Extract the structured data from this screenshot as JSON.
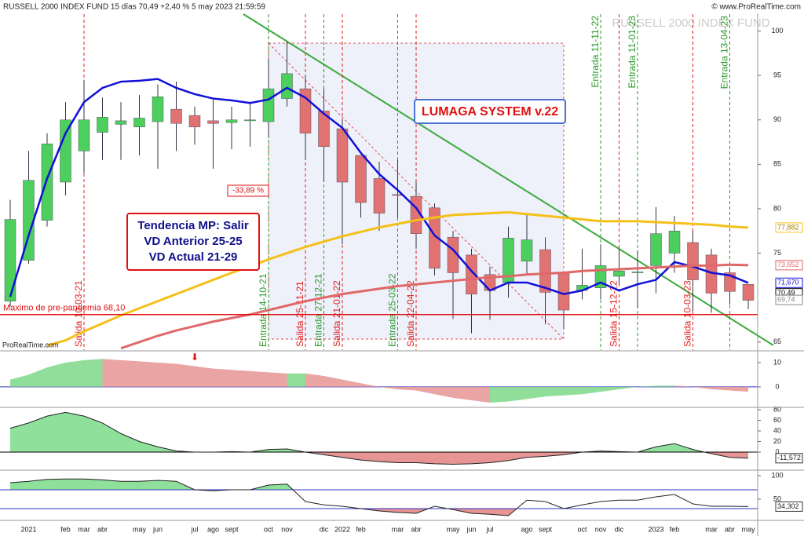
{
  "header": {
    "title": "RUSSELL 2000 INDEX FUND 15 días 70,49 +2,40 % 5 may 2023 21:59:59",
    "source": "© www.ProRealTime.com",
    "watermark": "RUSSELL 2000 INDEX FUND",
    "footer": "ProRealTime.com"
  },
  "annotations": {
    "system": "LUMAGA SYSTEM v.22",
    "trend": [
      "Tendencia MP: Salir",
      "VD Anterior 25-25",
      "VD Actual 21-29"
    ],
    "drawdown": "-33,89 %"
  },
  "chart_data": [
    {
      "type": "candlestick",
      "up_color": "#4ccf5c",
      "down_color": "#e07272",
      "categories": [
        null,
        "2021",
        null,
        "feb",
        "mar",
        "abr",
        null,
        "may",
        "jun",
        null,
        "jul",
        "ago",
        "sept",
        null,
        "oct",
        "nov",
        null,
        "dic",
        "2022",
        "feb",
        null,
        "mar",
        "abr",
        null,
        "may",
        "jun",
        "jul",
        null,
        "ago",
        "sept",
        null,
        "oct",
        "nov",
        "dic",
        null,
        "2023",
        "feb",
        null,
        "mar",
        "abr",
        "may"
      ],
      "open": [
        69.6,
        74.2,
        78.7,
        83,
        86.5,
        88.6,
        89.5,
        89.2,
        89.8,
        91.2,
        90.5,
        89.9,
        89.7,
        89.9,
        89.8,
        92.4,
        93.5,
        91,
        89,
        86,
        83.4,
        81.6,
        81.4,
        80.1,
        76.8,
        74.8,
        72.6,
        71.7,
        74.1,
        75.4,
        72.8,
        70.8,
        71.1,
        72.4,
        72.8,
        73.6,
        75,
        76.2,
        74.8,
        72.8,
        71.5
      ],
      "high": [
        81,
        86.5,
        88.5,
        92,
        94.5,
        92.5,
        92,
        92.8,
        94,
        94.3,
        91.5,
        92.3,
        91.5,
        92,
        97,
        98.8,
        95,
        93.5,
        90,
        86,
        85.3,
        85.5,
        83,
        80.6,
        77.5,
        75.5,
        73.5,
        78,
        79.5,
        76.8,
        72.8,
        75.5,
        76,
        75.5,
        75.3,
        80.2,
        79.2,
        77.5,
        75.5,
        73.3,
        71.5
      ],
      "low": [
        69,
        73.8,
        78,
        81.5,
        84,
        85.5,
        85.5,
        86,
        84.5,
        86.5,
        87.2,
        84.5,
        86.7,
        87,
        88,
        91.5,
        85.5,
        83,
        76,
        79,
        77.5,
        79,
        75.5,
        72.5,
        67.6,
        66,
        67.5,
        70,
        72.5,
        67,
        66.5,
        69.8,
        69.8,
        71.5,
        68.8,
        70.5,
        72.8,
        68.5,
        68.3,
        69.2,
        68.7
      ],
      "close": [
        78.8,
        83.2,
        87.3,
        90,
        90,
        90.3,
        89.9,
        90.2,
        92.6,
        89.6,
        89.2,
        89.6,
        90,
        90,
        93.5,
        95.2,
        88.5,
        87,
        83,
        80.7,
        79.5,
        81.5,
        77.2,
        73.3,
        72.8,
        70.4,
        70.8,
        76.7,
        76.5,
        70.6,
        68.6,
        71.4,
        73.6,
        73,
        72.9,
        77.2,
        77.5,
        72,
        70.5,
        70.7,
        69.7
      ],
      "overlays": [
        {
          "color": "#1010d8",
          "values": [
            70.1,
            77,
            83.4,
            88.5,
            92,
            93.6,
            94.3,
            94.4,
            94.6,
            93.6,
            92.9,
            92.4,
            92.2,
            91.9,
            92.3,
            93.6,
            92.5,
            90.7,
            89.1,
            86.3,
            83.9,
            82.1,
            80.1,
            77,
            75.4,
            73,
            70.8,
            71.7,
            71.7,
            71.1,
            70.4,
            70.8,
            71.7,
            70.8,
            71.5,
            72,
            74,
            73.5,
            72.8,
            72.5,
            71.67
          ]
        },
        {
          "color": "#f5c018",
          "values": [
            null,
            null,
            64.6,
            65.2,
            66.2,
            67.1,
            68,
            68.8,
            69.6,
            70.4,
            71.2,
            72,
            72.8,
            73.5,
            74.3,
            75,
            75.7,
            76.3,
            76.9,
            77.4,
            77.9,
            78.3,
            78.7,
            79,
            79.3,
            79.4,
            79.5,
            79.6,
            79.4,
            79.2,
            79,
            78.8,
            78.6,
            78.6,
            78.6,
            78.5,
            78.4,
            78.3,
            78.2,
            78,
            77.882
          ]
        },
        {
          "color": "#e06868",
          "values": [
            null,
            null,
            null,
            null,
            null,
            null,
            64.3,
            65,
            65.7,
            66.3,
            66.8,
            67.3,
            67.7,
            68.1,
            68.6,
            69.1,
            69.6,
            70,
            70.4,
            70.7,
            71,
            71.3,
            71.5,
            71.7,
            71.9,
            72.1,
            72.3,
            72.4,
            72.6,
            72.7,
            72.8,
            73,
            73.1,
            73.2,
            73.3,
            73.4,
            73.5,
            73.6,
            73.6,
            73.7,
            73.652
          ]
        }
      ],
      "hline": {
        "value": 68.1,
        "label": "Maximo de pre-pandemia 68,10",
        "color": "#e01010"
      },
      "price_labels": [
        {
          "value": 77.882,
          "label": "77,882",
          "color": "#f5c018"
        },
        {
          "value": 73.652,
          "label": "73,652",
          "color": "#e06868"
        },
        {
          "value": 71.67,
          "label": "71,670",
          "color": "#1010d8"
        },
        {
          "value": 70.49,
          "label": "70,49",
          "color": "#000000"
        },
        {
          "value": 69.74,
          "label": "69,74",
          "color": "#888888"
        }
      ],
      "signals": [
        {
          "label": "Salida 10-03-21"
        },
        {
          "label": "Salida 25-11-21"
        },
        {
          "label": "Salida 21-01-22"
        },
        {
          "label": "Salida 22-04-22"
        },
        {
          "label": "Salida 15-12-22"
        },
        {
          "label": "Salida 10-03-23"
        },
        {
          "label": "Entrada 14-10-21"
        },
        {
          "label": "Entrada 27-12-21"
        },
        {
          "label": "Entrada 25-03-22"
        },
        {
          "label": "Entrada 11-11-22"
        },
        {
          "label": "Entrada 11-01-23"
        },
        {
          "label": "Entrada 13-04-23"
        }
      ],
      "ylim": [
        64.1,
        101.9
      ],
      "yticks": [
        65,
        75,
        80,
        85,
        90,
        95,
        100
      ]
    },
    {
      "type": "slope-area",
      "up_color": "#7ed88a",
      "down_color": "#e69494",
      "ylim": [
        -8.1,
        14.5
      ],
      "yticks": [
        0,
        10
      ],
      "values": [
        3,
        5,
        8,
        10,
        11,
        11.5,
        11,
        10.5,
        10,
        9.5,
        8.5,
        7.5,
        7,
        6.5,
        6,
        5.5,
        5.5,
        4.5,
        3,
        1.5,
        0,
        -1,
        -1.5,
        -3,
        -4.5,
        -5.5,
        -6.5,
        -6,
        -5,
        -4,
        -3.5,
        -3,
        -2,
        -1,
        0,
        0.5,
        0.5,
        0,
        -1,
        -1.5,
        -2
      ]
    },
    {
      "type": "band-area",
      "up_color": "#8ee09a",
      "down_color": "#e69494",
      "ylim": [
        -32.6,
        83
      ],
      "yticks": [
        0,
        20,
        40,
        60,
        80
      ],
      "bands": [
        0,
        0
      ],
      "values": [
        45,
        55,
        68,
        75,
        68,
        55,
        35,
        20,
        10,
        2,
        0,
        0,
        1,
        0,
        5,
        6,
        0,
        -5,
        -10,
        -15,
        -18,
        -20,
        -20,
        -22,
        -23,
        -22,
        -20,
        -16,
        -10,
        -8,
        -5,
        0,
        2,
        1,
        0,
        10,
        16,
        5,
        -3,
        -10,
        -11.572
      ],
      "last_label": {
        "value": -11.572,
        "label": "-11,572"
      }
    },
    {
      "type": "band-area",
      "up_color": "#8ee09a",
      "down_color": "#e69494",
      "ylim": [
        6.7,
        110
      ],
      "yticks": [
        50,
        100
      ],
      "bands": [
        70,
        30
      ],
      "values": [
        85,
        88,
        92,
        93,
        93,
        91,
        88,
        88,
        90,
        88,
        70,
        68,
        70,
        70,
        80,
        82,
        45,
        38,
        35,
        30,
        25,
        22,
        20,
        35,
        28,
        20,
        18,
        15,
        48,
        45,
        30,
        38,
        45,
        48,
        48,
        55,
        60,
        40,
        35,
        35,
        34.302
      ],
      "last_label": {
        "value": 34.302,
        "label": "34,302"
      }
    }
  ]
}
